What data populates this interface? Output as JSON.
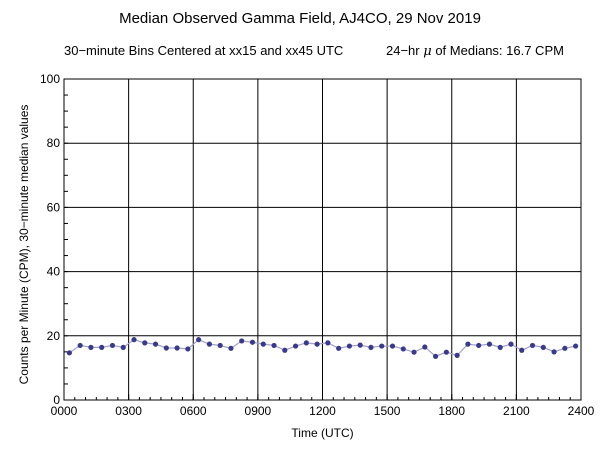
{
  "chart_data": {
    "type": "line",
    "title": "Median Observed Gamma Field, AJ4CO, 29 Nov 2019",
    "subtitle_left": "30−minute Bins Centered at xx15 and xx45 UTC",
    "subtitle_right_prefix": "24−hr",
    "subtitle_right_symbol": "μ",
    "subtitle_right_suffix": "of Medians: 16.7 CPM",
    "xlabel": "Time (UTC)",
    "ylabel": "Counts per Minute (CPM), 30−minute median values",
    "xlim": [
      0,
      24
    ],
    "ylim": [
      0,
      100
    ],
    "x_ticks": [
      0,
      3,
      6,
      9,
      12,
      15,
      18,
      21,
      24
    ],
    "x_tick_labels": [
      "0000",
      "0300",
      "0600",
      "0900",
      "1200",
      "1500",
      "1800",
      "2100",
      "2400"
    ],
    "y_ticks": [
      0,
      20,
      40,
      60,
      80,
      100
    ],
    "y_tick_labels": [
      "0",
      "20",
      "40",
      "60",
      "80",
      "100"
    ],
    "grid": true,
    "line_color": "#a0a0c8",
    "marker_color": "#3a3a8c",
    "series": [
      {
        "x": [
          0.25,
          0.75,
          1.25,
          1.75,
          2.25,
          2.75,
          3.25,
          3.75,
          4.25,
          4.75,
          5.25,
          5.75,
          6.25,
          6.75,
          7.25,
          7.75,
          8.25,
          8.75,
          9.25,
          9.75,
          10.25,
          10.75,
          11.25,
          11.75,
          12.25,
          12.75,
          13.25,
          13.75,
          14.25,
          14.75,
          15.25,
          15.75,
          16.25,
          16.75,
          17.25,
          17.75,
          18.25,
          18.75,
          19.25,
          19.75,
          20.25,
          20.75,
          21.25,
          21.75,
          22.25,
          22.75,
          23.25,
          23.75
        ],
        "values": [
          14.7,
          17.0,
          16.4,
          16.4,
          17.0,
          16.4,
          18.8,
          17.8,
          17.4,
          16.2,
          16.2,
          15.9,
          18.8,
          17.4,
          17.0,
          16.1,
          18.4,
          18.0,
          17.4,
          17.0,
          15.5,
          16.8,
          17.8,
          17.4,
          17.8,
          16.1,
          16.8,
          17.1,
          16.4,
          16.8,
          16.8,
          15.9,
          14.9,
          16.5,
          13.6,
          14.9,
          13.9,
          17.4,
          17.0,
          17.4,
          16.4,
          17.4,
          15.5,
          17.0,
          16.4,
          15.0,
          16.1,
          16.8
        ]
      }
    ]
  }
}
